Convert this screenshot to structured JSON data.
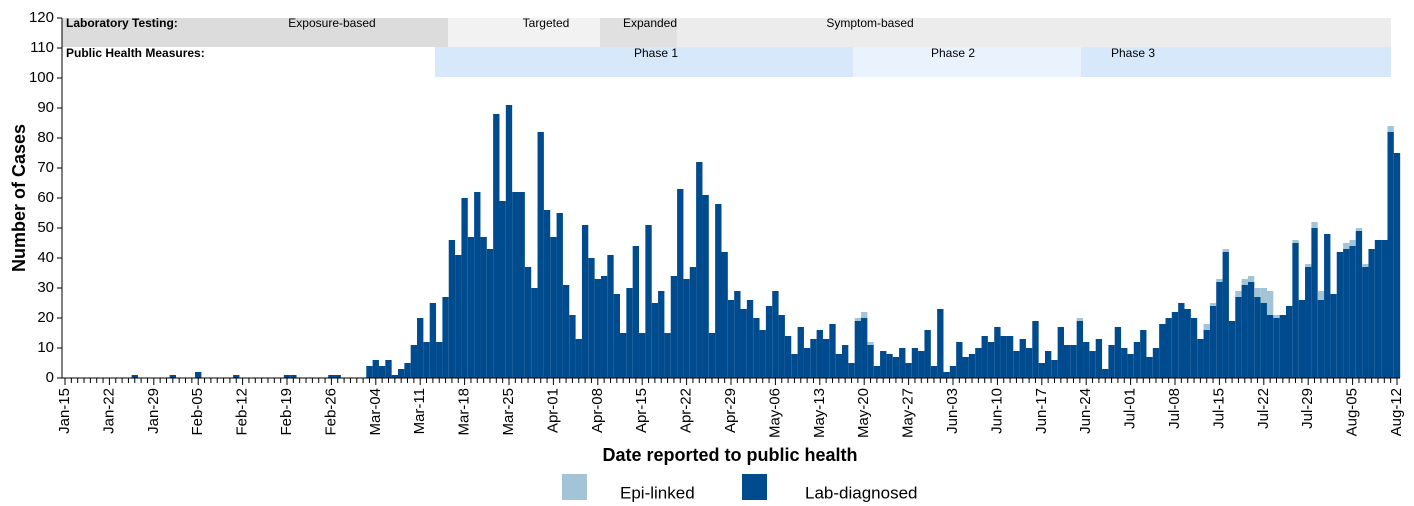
{
  "chart_data": {
    "type": "stacked_bar",
    "x_label": "Date reported to public health",
    "y_label": "Number of Cases",
    "ylim": [
      0,
      120
    ],
    "yticks": [
      0,
      10,
      20,
      30,
      40,
      50,
      60,
      70,
      80,
      90,
      100,
      110,
      120
    ],
    "categories": [
      "Jan-15",
      null,
      null,
      null,
      null,
      null,
      null,
      "Jan-22",
      null,
      null,
      null,
      null,
      null,
      null,
      "Jan-29",
      null,
      null,
      null,
      null,
      null,
      null,
      "Feb-05",
      null,
      null,
      null,
      null,
      null,
      null,
      "Feb-12",
      null,
      null,
      null,
      null,
      null,
      null,
      "Feb-19",
      null,
      null,
      null,
      null,
      null,
      null,
      "Feb-26",
      null,
      null,
      null,
      null,
      null,
      null,
      "Mar-04",
      null,
      null,
      null,
      null,
      null,
      null,
      "Mar-11",
      null,
      null,
      null,
      null,
      null,
      null,
      "Mar-18",
      null,
      null,
      null,
      null,
      null,
      null,
      "Mar-25",
      null,
      null,
      null,
      null,
      null,
      null,
      "Apr-01",
      null,
      null,
      null,
      null,
      null,
      null,
      "Apr-08",
      null,
      null,
      null,
      null,
      null,
      null,
      "Apr-15",
      null,
      null,
      null,
      null,
      null,
      null,
      "Apr-22",
      null,
      null,
      null,
      null,
      null,
      null,
      "Apr-29",
      null,
      null,
      null,
      null,
      null,
      null,
      "May-06",
      null,
      null,
      null,
      null,
      null,
      null,
      "May-13",
      null,
      null,
      null,
      null,
      null,
      null,
      "May-20",
      null,
      null,
      null,
      null,
      null,
      null,
      "May-27",
      null,
      null,
      null,
      null,
      null,
      null,
      "Jun-03",
      null,
      null,
      null,
      null,
      null,
      null,
      "Jun-10",
      null,
      null,
      null,
      null,
      null,
      null,
      "Jun-17",
      null,
      null,
      null,
      null,
      null,
      null,
      "Jun-24",
      null,
      null,
      null,
      null,
      null,
      null,
      "Jul-01",
      null,
      null,
      null,
      null,
      null,
      null,
      "Jul-08",
      null,
      null,
      null,
      null,
      null,
      null,
      "Jul-15",
      null,
      null,
      null,
      null,
      null,
      null,
      "Jul-22",
      null,
      null,
      null,
      null,
      null,
      null,
      "Jul-29",
      null,
      null,
      null,
      null,
      null,
      null,
      "Aug-05",
      null,
      null,
      null,
      null,
      null,
      null,
      "Aug-12"
    ],
    "series": [
      {
        "name": "Epi-linked",
        "color": "#a3c4d6",
        "values": [
          0,
          0,
          0,
          0,
          0,
          0,
          0,
          0,
          0,
          0,
          0,
          0,
          0,
          0,
          0,
          0,
          0,
          0,
          0,
          0,
          0,
          0,
          0,
          0,
          0,
          0,
          0,
          0,
          0,
          0,
          0,
          0,
          0,
          0,
          0,
          0,
          0,
          0,
          0,
          0,
          0,
          0,
          0,
          0,
          0,
          0,
          0,
          0,
          0,
          0,
          0,
          0,
          0,
          0,
          0,
          0,
          0,
          0,
          0,
          0,
          0,
          0,
          0,
          0,
          0,
          0,
          0,
          0,
          0,
          0,
          0,
          0,
          0,
          0,
          0,
          0,
          0,
          0,
          0,
          0,
          0,
          0,
          0,
          0,
          0,
          0,
          0,
          0,
          0,
          0,
          0,
          0,
          0,
          0,
          0,
          0,
          0,
          0,
          0,
          0,
          0,
          0,
          0,
          0,
          0,
          0,
          0,
          0,
          0,
          0,
          0,
          0,
          0,
          0,
          0,
          0,
          0,
          0,
          0,
          0,
          0,
          0,
          0,
          0,
          0,
          1,
          2,
          1,
          0,
          0,
          0,
          0,
          0,
          0,
          0,
          0,
          0,
          0,
          0,
          0,
          0,
          0,
          0,
          0,
          0,
          0,
          0,
          0,
          0,
          0,
          0,
          0,
          0,
          0,
          0,
          0,
          0,
          0,
          0,
          0,
          1,
          0,
          0,
          0,
          0,
          0,
          0,
          0,
          0,
          0,
          0,
          0,
          0,
          0,
          0,
          0,
          0,
          0,
          0,
          0,
          2,
          1,
          1,
          1,
          0,
          2,
          2,
          2,
          3,
          5,
          8,
          1,
          0,
          0,
          1,
          0,
          1,
          2,
          3,
          0,
          0,
          0,
          2,
          2,
          1,
          1,
          0,
          0,
          0,
          2,
          0
        ]
      },
      {
        "name": "Lab-diagnosed",
        "color": "#004b8d",
        "values": [
          0,
          0,
          0,
          0,
          0,
          0,
          0,
          0,
          0,
          0,
          0,
          1,
          0,
          0,
          0,
          0,
          0,
          1,
          0,
          0,
          0,
          2,
          0,
          0,
          0,
          0,
          0,
          1,
          0,
          0,
          0,
          0,
          0,
          0,
          0,
          1,
          1,
          0,
          0,
          0,
          0,
          0,
          1,
          1,
          0,
          0,
          0,
          0,
          4,
          6,
          4,
          6,
          1,
          3,
          5,
          11,
          20,
          12,
          25,
          12,
          27,
          46,
          41,
          60,
          47,
          62,
          47,
          43,
          88,
          59,
          91,
          62,
          62,
          37,
          30,
          82,
          56,
          47,
          55,
          31,
          21,
          13,
          51,
          40,
          33,
          34,
          41,
          28,
          15,
          30,
          44,
          15,
          51,
          25,
          29,
          15,
          34,
          63,
          33,
          37,
          72,
          61,
          15,
          58,
          42,
          26,
          29,
          23,
          26,
          20,
          16,
          24,
          29,
          21,
          14,
          8,
          17,
          10,
          13,
          16,
          13,
          18,
          8,
          11,
          5,
          19,
          20,
          11,
          4,
          9,
          8,
          7,
          10,
          5,
          10,
          9,
          16,
          4,
          23,
          2,
          4,
          12,
          7,
          8,
          10,
          14,
          12,
          17,
          14,
          14,
          9,
          13,
          10,
          19,
          5,
          9,
          6,
          17,
          11,
          11,
          19,
          12,
          9,
          13,
          3,
          11,
          17,
          10,
          8,
          12,
          16,
          7,
          10,
          18,
          20,
          22,
          25,
          23,
          20,
          13,
          16,
          24,
          32,
          42,
          19,
          27,
          31,
          32,
          27,
          25,
          21,
          20,
          21,
          24,
          45,
          26,
          37,
          50,
          26,
          48,
          28,
          42,
          43,
          44,
          49,
          37,
          43,
          46,
          46,
          82,
          75
        ]
      }
    ],
    "annotations": {
      "lab_testing": {
        "label": "Laboratory Testing:",
        "stages": [
          "Exposure-based",
          "Targeted",
          "Expanded",
          "Symptom-based"
        ]
      },
      "public_health": {
        "label": "Public Health Measures:",
        "stages": [
          "Phase 1",
          "Phase 2",
          "Phase 3"
        ]
      }
    }
  }
}
